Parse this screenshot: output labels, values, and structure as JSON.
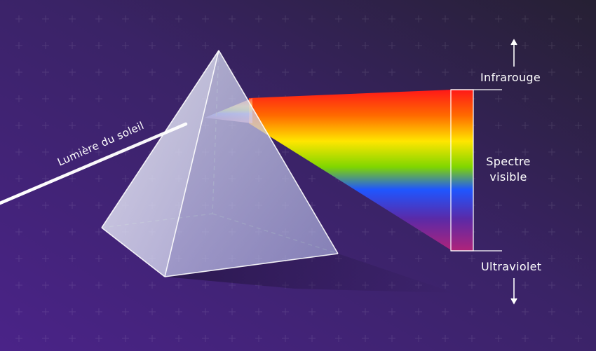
{
  "labels": {
    "sunlight": "Lumière du soleil",
    "infrared": "Infrarouge",
    "visible_line1": "Spectre",
    "visible_line2": "visible",
    "ultraviolet": "Ultraviolet"
  },
  "colors": {
    "background_top": "#2a1f3e",
    "background_bottom": "#4a2585",
    "spectrum": [
      "#ff1a1a",
      "#ff8a00",
      "#ffe600",
      "#6ad400",
      "#1e5bff",
      "#6a2bb0",
      "#b0237a"
    ],
    "prism": "#e6e9f8",
    "text": "#ffffff"
  },
  "icons": {
    "top_arrow": "arrow-up-icon",
    "bottom_arrow": "arrow-down-icon"
  }
}
